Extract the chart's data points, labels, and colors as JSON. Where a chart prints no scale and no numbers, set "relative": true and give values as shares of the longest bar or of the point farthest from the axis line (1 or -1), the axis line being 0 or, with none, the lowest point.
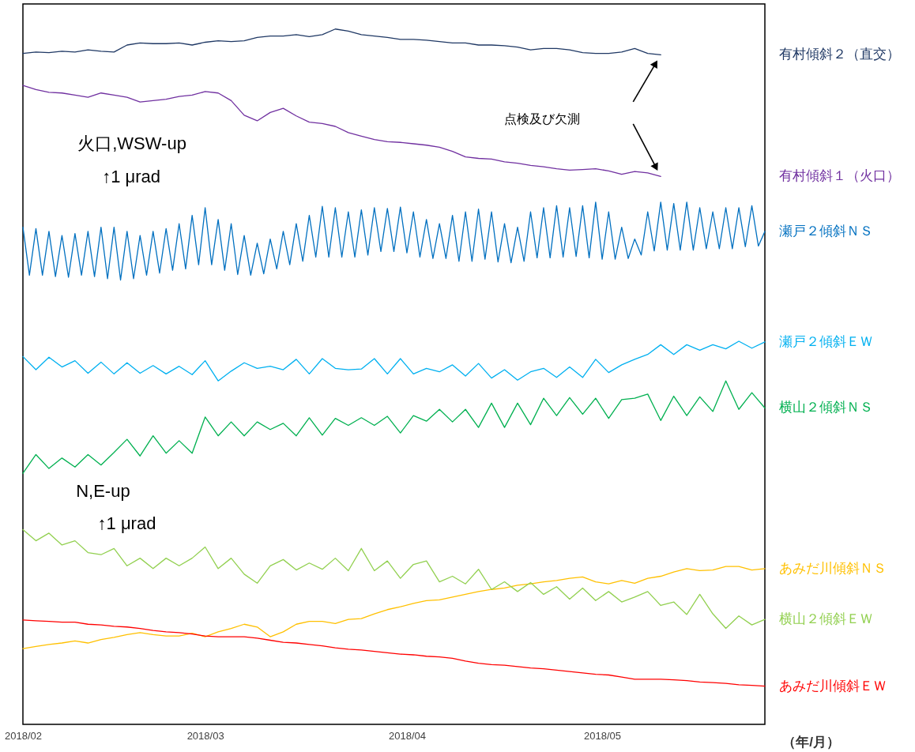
{
  "chart_data": {
    "type": "line",
    "relative": true,
    "xlabel": "（年/月）",
    "annotations": [
      "火口,WSW-up",
      "↑1 μrad",
      "N,E-up",
      "↑1 μrad",
      "点検及び欠測"
    ],
    "xlim": [
      "2018-02-01",
      "2018-05-26"
    ],
    "xticks": [
      {
        "value": "2018-02-01",
        "label": "2018/02"
      },
      {
        "value": "2018-03-01",
        "label": "2018/03"
      },
      {
        "value": "2018-04-01",
        "label": "2018/04"
      },
      {
        "value": "2018-05-01",
        "label": "2018/05"
      }
    ],
    "x": [
      "2018-02-01",
      "2018-02-03",
      "2018-02-05",
      "2018-02-07",
      "2018-02-09",
      "2018-02-11",
      "2018-02-13",
      "2018-02-15",
      "2018-02-17",
      "2018-02-19",
      "2018-02-21",
      "2018-02-23",
      "2018-02-25",
      "2018-02-27",
      "2018-03-01",
      "2018-03-03",
      "2018-03-05",
      "2018-03-07",
      "2018-03-09",
      "2018-03-11",
      "2018-03-13",
      "2018-03-15",
      "2018-03-17",
      "2018-03-19",
      "2018-03-21",
      "2018-03-23",
      "2018-03-25",
      "2018-03-27",
      "2018-03-29",
      "2018-03-31",
      "2018-04-02",
      "2018-04-04",
      "2018-04-06",
      "2018-04-08",
      "2018-04-10",
      "2018-04-12",
      "2018-04-14",
      "2018-04-16",
      "2018-04-18",
      "2018-04-20",
      "2018-04-22",
      "2018-04-24",
      "2018-04-26",
      "2018-04-28",
      "2018-04-30",
      "2018-05-02",
      "2018-05-04",
      "2018-05-06",
      "2018-05-08",
      "2018-05-10",
      "2018-05-12",
      "2018-05-14",
      "2018-05-16",
      "2018-05-18",
      "2018-05-20",
      "2018-05-22",
      "2018-05-24",
      "2018-05-26"
    ],
    "series": [
      {
        "name": "有村傾斜２（直交）",
        "color": "#1f3864",
        "values": [
          0.965,
          0.967,
          0.966,
          0.968,
          0.967,
          0.97,
          0.968,
          0.967,
          0.977,
          0.98,
          0.979,
          0.979,
          0.98,
          0.977,
          0.981,
          0.983,
          0.982,
          0.983,
          0.988,
          0.99,
          0.99,
          0.992,
          0.989,
          0.992,
          1.0,
          0.997,
          0.992,
          0.99,
          0.988,
          0.985,
          0.985,
          0.984,
          0.982,
          0.98,
          0.98,
          0.977,
          0.977,
          0.976,
          0.974,
          0.97,
          0.972,
          0.972,
          0.97,
          0.966,
          0.965,
          0.965,
          0.967,
          0.972,
          0.965,
          0.963,
          null,
          null,
          null,
          null,
          null,
          null,
          null,
          null
        ]
      },
      {
        "name": "有村傾斜１（火口）",
        "color": "#7030a0",
        "values": [
          0.919,
          0.913,
          0.909,
          0.908,
          0.905,
          0.902,
          0.908,
          0.905,
          0.902,
          0.895,
          0.897,
          0.899,
          0.903,
          0.905,
          0.91,
          0.908,
          0.897,
          0.876,
          0.868,
          0.88,
          0.886,
          0.875,
          0.866,
          0.864,
          0.86,
          0.851,
          0.846,
          0.841,
          0.838,
          0.837,
          0.835,
          0.833,
          0.83,
          0.824,
          0.816,
          0.814,
          0.813,
          0.809,
          0.807,
          0.804,
          0.802,
          0.799,
          0.797,
          0.798,
          0.799,
          0.796,
          0.791,
          0.795,
          0.793,
          0.788,
          null,
          null,
          null,
          null,
          null,
          null,
          null,
          null
        ]
      },
      {
        "name": "瀬戸２傾斜ＮＳ",
        "color": "#0070c0",
        "x": [
          "2018-02-01",
          "2018-02-02",
          "2018-02-03",
          "2018-02-04",
          "2018-02-05",
          "2018-02-06",
          "2018-02-07",
          "2018-02-08",
          "2018-02-09",
          "2018-02-10",
          "2018-02-11",
          "2018-02-12",
          "2018-02-13",
          "2018-02-14",
          "2018-02-15",
          "2018-02-16",
          "2018-02-17",
          "2018-02-18",
          "2018-02-19",
          "2018-02-20",
          "2018-02-21",
          "2018-02-22",
          "2018-02-23",
          "2018-02-24",
          "2018-02-25",
          "2018-02-26",
          "2018-02-27",
          "2018-02-28",
          "2018-03-01",
          "2018-03-02",
          "2018-03-03",
          "2018-03-04",
          "2018-03-05",
          "2018-03-06",
          "2018-03-07",
          "2018-03-08",
          "2018-03-09",
          "2018-03-10",
          "2018-03-11",
          "2018-03-12",
          "2018-03-13",
          "2018-03-14",
          "2018-03-15",
          "2018-03-16",
          "2018-03-17",
          "2018-03-18",
          "2018-03-19",
          "2018-03-20",
          "2018-03-21",
          "2018-03-22",
          "2018-03-23",
          "2018-03-24",
          "2018-03-25",
          "2018-03-26",
          "2018-03-27",
          "2018-03-28",
          "2018-03-29",
          "2018-03-30",
          "2018-03-31",
          "2018-04-01",
          "2018-04-02",
          "2018-04-03",
          "2018-04-04",
          "2018-04-05",
          "2018-04-06",
          "2018-04-07",
          "2018-04-08",
          "2018-04-09",
          "2018-04-10",
          "2018-04-11",
          "2018-04-12",
          "2018-04-13",
          "2018-04-14",
          "2018-04-15",
          "2018-04-16",
          "2018-04-17",
          "2018-04-18",
          "2018-04-19",
          "2018-04-20",
          "2018-04-21",
          "2018-04-22",
          "2018-04-23",
          "2018-04-24",
          "2018-04-25",
          "2018-04-26",
          "2018-04-27",
          "2018-04-28",
          "2018-04-29",
          "2018-04-30",
          "2018-05-01",
          "2018-05-02",
          "2018-05-03",
          "2018-05-04",
          "2018-05-05",
          "2018-05-06",
          "2018-05-07",
          "2018-05-08",
          "2018-05-09",
          "2018-05-10",
          "2018-05-11",
          "2018-05-12",
          "2018-05-13",
          "2018-05-14",
          "2018-05-15",
          "2018-05-16",
          "2018-05-17",
          "2018-05-18",
          "2018-05-19",
          "2018-05-20",
          "2018-05-21",
          "2018-05-22",
          "2018-05-23",
          "2018-05-24",
          "2018-05-25",
          "2018-05-26"
        ],
        "values": [
          0.715,
          0.646,
          0.713,
          0.646,
          0.709,
          0.644,
          0.703,
          0.643,
          0.706,
          0.646,
          0.709,
          0.644,
          0.715,
          0.641,
          0.715,
          0.639,
          0.709,
          0.641,
          0.703,
          0.646,
          0.709,
          0.649,
          0.713,
          0.653,
          0.72,
          0.655,
          0.732,
          0.661,
          0.743,
          0.661,
          0.726,
          0.653,
          0.72,
          0.647,
          0.703,
          0.646,
          0.692,
          0.648,
          0.698,
          0.655,
          0.709,
          0.661,
          0.72,
          0.666,
          0.732,
          0.672,
          0.745,
          0.672,
          0.743,
          0.672,
          0.737,
          0.672,
          0.74,
          0.675,
          0.743,
          0.68,
          0.742,
          0.68,
          0.744,
          0.678,
          0.737,
          0.672,
          0.726,
          0.67,
          0.72,
          0.67,
          0.732,
          0.666,
          0.737,
          0.666,
          0.741,
          0.669,
          0.737,
          0.665,
          0.72,
          0.664,
          0.715,
          0.666,
          0.737,
          0.671,
          0.743,
          0.671,
          0.746,
          0.672,
          0.743,
          0.673,
          0.746,
          0.671,
          0.751,
          0.669,
          0.737,
          0.669,
          0.715,
          0.67,
          0.698,
          0.675,
          0.737,
          0.681,
          0.751,
          0.682,
          0.749,
          0.682,
          0.751,
          0.682,
          0.743,
          0.684,
          0.737,
          0.684,
          0.743,
          0.684,
          0.743,
          0.687,
          0.746,
          0.688,
          0.709
        ]
      },
      {
        "name": "瀬戸２傾斜ＥＷ",
        "color": "#00b0f0",
        "values": [
          0.529,
          0.51,
          0.528,
          0.514,
          0.523,
          0.505,
          0.521,
          0.504,
          0.52,
          0.505,
          0.516,
          0.504,
          0.515,
          0.503,
          0.523,
          0.494,
          0.508,
          0.52,
          0.512,
          0.515,
          0.51,
          0.525,
          0.504,
          0.526,
          0.512,
          0.51,
          0.511,
          0.526,
          0.504,
          0.526,
          0.504,
          0.512,
          0.507,
          0.517,
          0.501,
          0.519,
          0.498,
          0.51,
          0.495,
          0.507,
          0.512,
          0.499,
          0.514,
          0.499,
          0.525,
          0.506,
          0.517,
          0.525,
          0.532,
          0.546,
          0.532,
          0.546,
          0.538,
          0.546,
          0.54,
          0.551,
          0.541,
          0.55
        ]
      },
      {
        "name": "横山２傾斜ＮＳ",
        "color": "#00b050",
        "values": [
          0.361,
          0.388,
          0.368,
          0.383,
          0.37,
          0.388,
          0.373,
          0.391,
          0.41,
          0.386,
          0.415,
          0.39,
          0.408,
          0.39,
          0.442,
          0.415,
          0.435,
          0.415,
          0.435,
          0.424,
          0.433,
          0.415,
          0.441,
          0.416,
          0.44,
          0.43,
          0.441,
          0.43,
          0.443,
          0.419,
          0.444,
          0.436,
          0.453,
          0.435,
          0.453,
          0.427,
          0.462,
          0.427,
          0.462,
          0.431,
          0.469,
          0.444,
          0.47,
          0.446,
          0.469,
          0.44,
          0.467,
          0.469,
          0.475,
          0.437,
          0.472,
          0.444,
          0.471,
          0.45,
          0.494,
          0.453,
          0.477,
          0.455
        ]
      },
      {
        "name": "あみだ川傾斜ＮＳ",
        "color": "#ffc000",
        "values": [
          0.109,
          0.112,
          0.115,
          0.117,
          0.12,
          0.117,
          0.122,
          0.125,
          0.129,
          0.132,
          0.129,
          0.127,
          0.127,
          0.131,
          0.126,
          0.133,
          0.138,
          0.144,
          0.14,
          0.126,
          0.133,
          0.144,
          0.148,
          0.148,
          0.145,
          0.151,
          0.152,
          0.159,
          0.165,
          0.169,
          0.174,
          0.178,
          0.179,
          0.183,
          0.187,
          0.191,
          0.194,
          0.196,
          0.2,
          0.202,
          0.205,
          0.207,
          0.21,
          0.212,
          0.205,
          0.202,
          0.207,
          0.203,
          0.21,
          0.213,
          0.219,
          0.224,
          0.221,
          0.222,
          0.227,
          0.227,
          0.222,
          0.224
        ]
      },
      {
        "name": "横山２傾斜ＥＷ",
        "color": "#92d050",
        "values": [
          0.28,
          0.264,
          0.275,
          0.258,
          0.264,
          0.247,
          0.244,
          0.253,
          0.228,
          0.239,
          0.224,
          0.239,
          0.228,
          0.239,
          0.255,
          0.224,
          0.239,
          0.216,
          0.203,
          0.228,
          0.237,
          0.222,
          0.232,
          0.223,
          0.239,
          0.221,
          0.253,
          0.221,
          0.235,
          0.21,
          0.23,
          0.235,
          0.205,
          0.213,
          0.202,
          0.223,
          0.194,
          0.205,
          0.191,
          0.204,
          0.187,
          0.198,
          0.18,
          0.196,
          0.178,
          0.191,
          0.176,
          0.183,
          0.191,
          0.171,
          0.176,
          0.158,
          0.187,
          0.159,
          0.138,
          0.156,
          0.143,
          0.151
        ]
      },
      {
        "name": "あみだ川傾斜ＥＷ",
        "color": "#ff0000",
        "values": [
          0.15,
          0.149,
          0.148,
          0.147,
          0.147,
          0.144,
          0.143,
          0.141,
          0.14,
          0.138,
          0.135,
          0.133,
          0.132,
          0.13,
          0.127,
          0.126,
          0.126,
          0.126,
          0.124,
          0.121,
          0.118,
          0.117,
          0.115,
          0.113,
          0.11,
          0.108,
          0.107,
          0.105,
          0.103,
          0.101,
          0.1,
          0.098,
          0.097,
          0.095,
          0.091,
          0.088,
          0.086,
          0.085,
          0.083,
          0.081,
          0.08,
          0.078,
          0.076,
          0.074,
          0.072,
          0.071,
          0.068,
          0.065,
          0.065,
          0.065,
          0.064,
          0.063,
          0.061,
          0.06,
          0.059,
          0.057,
          0.056,
          0.055
        ]
      }
    ]
  }
}
